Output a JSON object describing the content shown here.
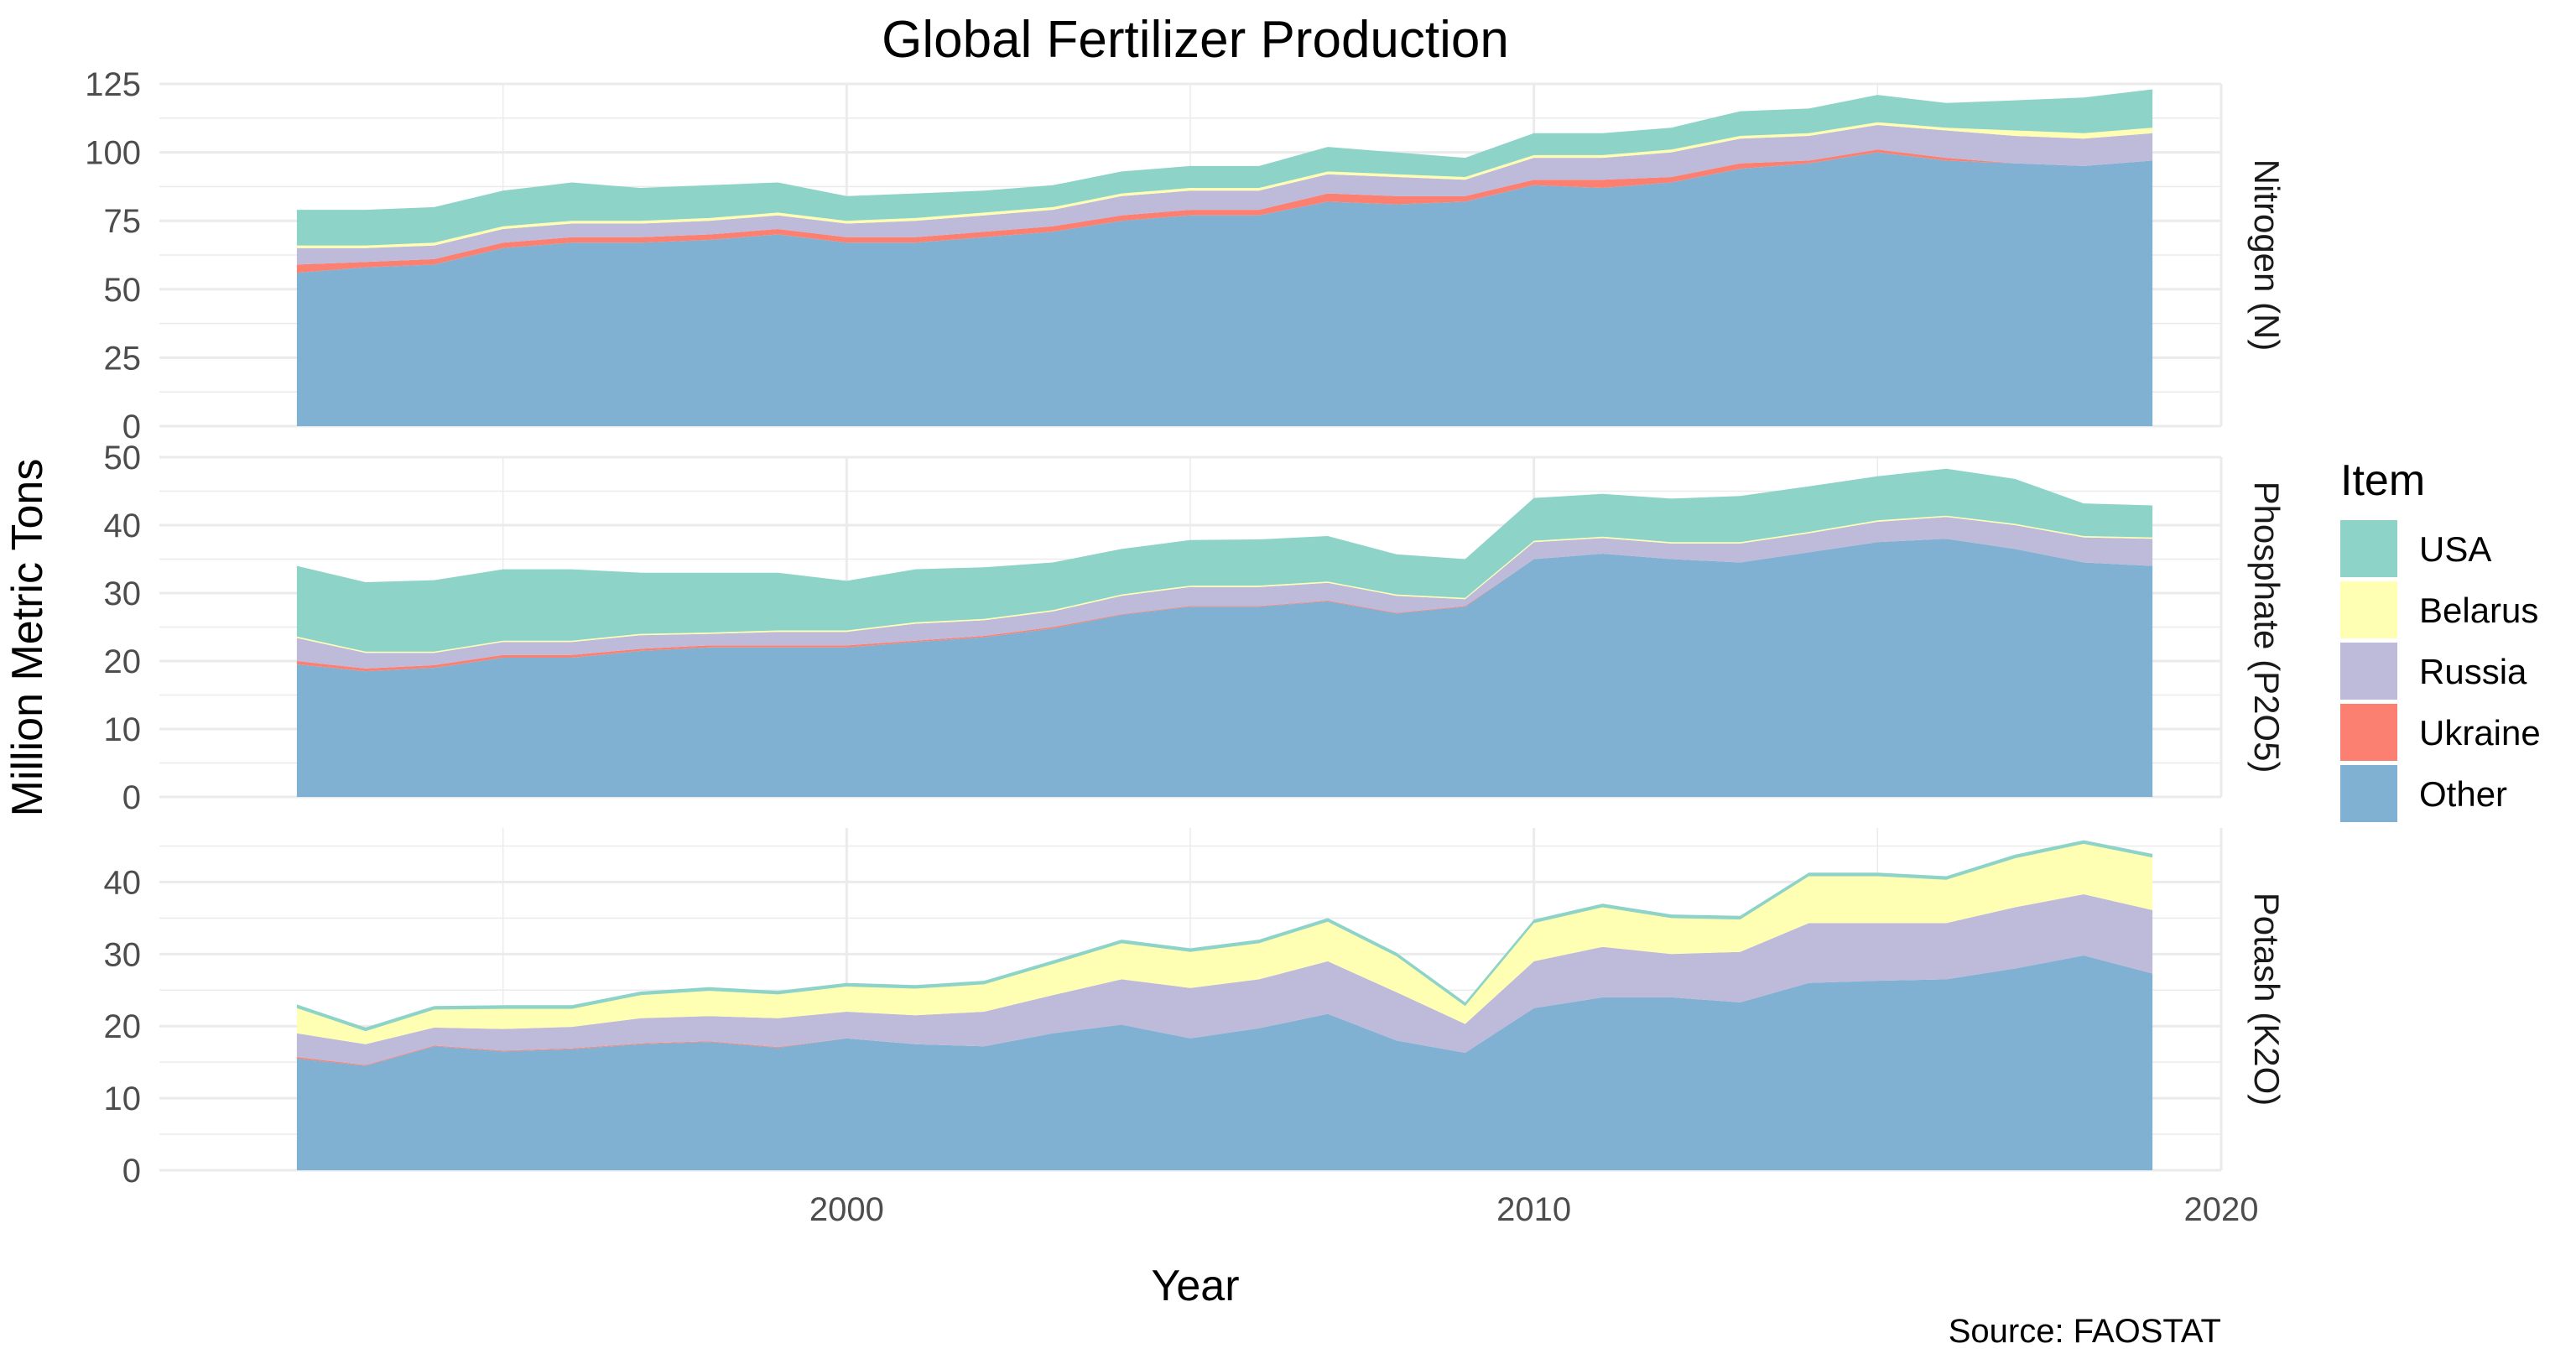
{
  "chart_data": {
    "type": "area",
    "stacked": true,
    "title": "Global Fertilizer Production",
    "xlabel": "Year",
    "ylabel": "Million Metric Tons",
    "caption": "Source: FAOSTAT",
    "xlim": [
      1990,
      2020
    ],
    "x_ticks": [
      "2000",
      "2010",
      "2020"
    ],
    "legend": {
      "title": "Item",
      "placement": "right",
      "items": [
        {
          "name": "USA",
          "color": "#8dd3c7"
        },
        {
          "name": "Belarus",
          "color": "#ffffb3"
        },
        {
          "name": "Russia",
          "color": "#bebada"
        },
        {
          "name": "Ukraine",
          "color": "#fb8072"
        },
        {
          "name": "Other",
          "color": "#80b1d3"
        }
      ]
    },
    "years": [
      1992,
      1993,
      1994,
      1995,
      1996,
      1997,
      1998,
      1999,
      2000,
      2001,
      2002,
      2003,
      2004,
      2005,
      2006,
      2007,
      2008,
      2009,
      2010,
      2011,
      2012,
      2013,
      2014,
      2015,
      2016,
      2017,
      2018,
      2019
    ],
    "panels": [
      {
        "label": "Nitrogen (N)",
        "ylim": [
          0,
          125
        ],
        "y_ticks": [
          "0",
          "25",
          "50",
          "75",
          "100",
          "125"
        ],
        "series": [
          {
            "name": "Other",
            "values": [
              56,
              58,
              59,
              65,
              67,
              67,
              68,
              70,
              67,
              67,
              69,
              71,
              75,
              77,
              77,
              82,
              81,
              82,
              88,
              87,
              89,
              94,
              96,
              100,
              97,
              96,
              95,
              97
            ]
          },
          {
            "name": "Ukraine",
            "values": [
              3,
              2,
              2,
              2,
              2,
              2,
              2,
              2,
              2,
              2,
              2,
              2,
              2,
              2,
              2,
              3,
              3,
              2,
              2,
              3,
              2,
              2,
              1,
              1,
              1,
              0,
              0,
              0
            ]
          },
          {
            "name": "Russia",
            "values": [
              6,
              5,
              5,
              5,
              5,
              5,
              5,
              5,
              5,
              6,
              6,
              6,
              7,
              7,
              7,
              7,
              7,
              6,
              8,
              8,
              9,
              9,
              9,
              9,
              10,
              10,
              10,
              10
            ]
          },
          {
            "name": "Belarus",
            "values": [
              1,
              1,
              1,
              1,
              1,
              1,
              1,
              1,
              1,
              1,
              1,
              1,
              1,
              1,
              1,
              1,
              1,
              1,
              1,
              1,
              1,
              1,
              1,
              1,
              1,
              2,
              2,
              2
            ]
          },
          {
            "name": "USA",
            "values": [
              13,
              13,
              13,
              13,
              14,
              12,
              12,
              11,
              9,
              9,
              8,
              8,
              8,
              8,
              8,
              9,
              8,
              7,
              8,
              8,
              8,
              9,
              9,
              10,
              9,
              11,
              13,
              14
            ]
          }
        ]
      },
      {
        "label": "Phosphate (P2O5)",
        "ylim": [
          0,
          50
        ],
        "y_ticks": [
          "0",
          "10",
          "20",
          "30",
          "40",
          "50"
        ],
        "series": [
          {
            "name": "Other",
            "values": [
              19.5,
              18.5,
              19,
              20.5,
              20.5,
              21.5,
              22,
              22,
              22,
              22.8,
              23.5,
              24.8,
              26.8,
              28,
              28,
              28.8,
              27,
              28,
              35,
              35.8,
              35,
              34.5,
              36,
              37.5,
              38,
              36.5,
              34.5,
              34
            ]
          },
          {
            "name": "Ukraine",
            "values": [
              0.5,
              0.4,
              0.4,
              0.4,
              0.4,
              0.3,
              0.3,
              0.3,
              0.3,
              0.2,
              0.2,
              0.2,
              0.1,
              0.1,
              0.1,
              0.1,
              0.1,
              0.1,
              0,
              0,
              0,
              0,
              0,
              0,
              0,
              0,
              0,
              0
            ]
          },
          {
            "name": "Russia",
            "values": [
              3.4,
              2.3,
              1.8,
              1.9,
              1.9,
              2.0,
              1.7,
              2.0,
              2.0,
              2.5,
              2.3,
              2.3,
              2.7,
              2.8,
              2.8,
              2.6,
              2.5,
              1.0,
              2.5,
              2.3,
              2.3,
              2.8,
              2.8,
              3.0,
              3.2,
              3.5,
              3.7,
              4.0
            ]
          },
          {
            "name": "Belarus",
            "values": [
              0.2,
              0.2,
              0.2,
              0.2,
              0.2,
              0.2,
              0.2,
              0.2,
              0.2,
              0.2,
              0.2,
              0.2,
              0.2,
              0.2,
              0.2,
              0.2,
              0.2,
              0.2,
              0.2,
              0.2,
              0.2,
              0.2,
              0.2,
              0.2,
              0.2,
              0.2,
              0.2,
              0.2
            ]
          },
          {
            "name": "USA",
            "values": [
              10.4,
              10.2,
              10.5,
              10.5,
              10.5,
              9.0,
              8.8,
              8.5,
              7.3,
              7.8,
              7.6,
              7.0,
              6.7,
              6.7,
              6.8,
              6.7,
              5.9,
              5.7,
              6.3,
              6.3,
              6.4,
              6.8,
              6.7,
              6.5,
              6.9,
              6.6,
              4.8,
              4.7
            ]
          }
        ]
      },
      {
        "label": "Potash (K2O)",
        "ylim": [
          0,
          47.5
        ],
        "y_ticks": [
          "0",
          "10",
          "20",
          "30",
          "40"
        ],
        "series": [
          {
            "name": "Other",
            "values": [
              15.5,
              14.5,
              17.2,
              16.5,
              16.8,
              17.5,
              17.8,
              17,
              18.3,
              17.5,
              17.2,
              19,
              20.2,
              18.3,
              19.7,
              21.7,
              18,
              16.3,
              22.5,
              24,
              24,
              23.3,
              26,
              26.3,
              26.5,
              28,
              29.8,
              27.3
            ]
          },
          {
            "name": "Ukraine",
            "values": [
              0.2,
              0.1,
              0.1,
              0.1,
              0.1,
              0.1,
              0.1,
              0.1,
              0,
              0,
              0,
              0,
              0,
              0,
              0,
              0,
              0,
              0,
              0,
              0,
              0,
              0,
              0,
              0,
              0,
              0,
              0,
              0
            ]
          },
          {
            "name": "Russia",
            "values": [
              3.3,
              2.9,
              2.5,
              3.0,
              3.0,
              3.5,
              3.5,
              4.0,
              3.7,
              4.0,
              4.8,
              5.3,
              6.3,
              7.0,
              6.8,
              7.3,
              6.7,
              4.0,
              6.5,
              7.0,
              6.0,
              7.0,
              8.3,
              8.0,
              7.8,
              8.5,
              8.5,
              8.8
            ]
          },
          {
            "name": "Belarus",
            "values": [
              3.5,
              1.8,
              2.5,
              2.8,
              2.5,
              3.2,
              3.5,
              3.3,
              3.5,
              3.7,
              3.8,
              4.3,
              5.0,
              5.0,
              5.0,
              5.5,
              5.0,
              2.5,
              5.3,
              5.5,
              5.0,
              4.5,
              6.5,
              6.5,
              6.0,
              6.8,
              7.0,
              7.3
            ]
          },
          {
            "name": "USA",
            "values": [
              0.5,
              0.5,
              0.5,
              0.5,
              0.5,
              0.5,
              0.5,
              0.5,
              0.5,
              0.5,
              0.5,
              0.5,
              0.5,
              0.5,
              0.5,
              0.5,
              0.5,
              0.5,
              0.5,
              0.5,
              0.5,
              0.5,
              0.5,
              0.5,
              0.5,
              0.5,
              0.5,
              0.5
            ]
          }
        ]
      }
    ]
  }
}
